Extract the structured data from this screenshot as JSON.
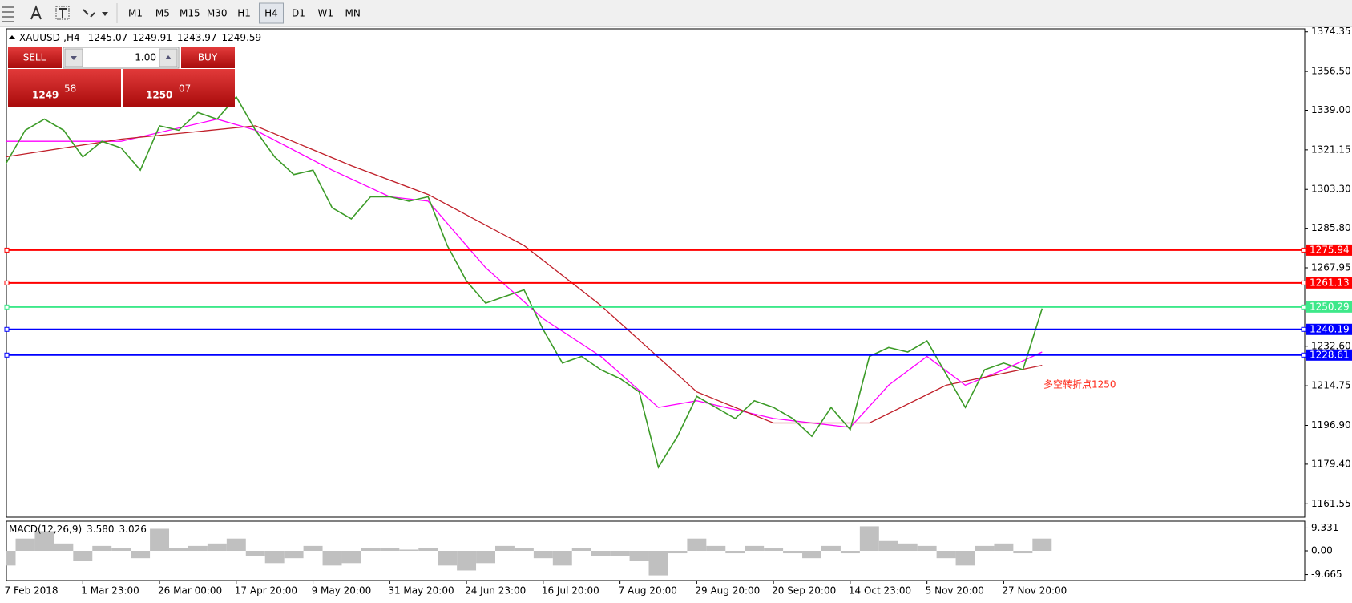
{
  "toolbar": {
    "timeframes": [
      "M1",
      "M5",
      "M15",
      "M30",
      "H1",
      "H4",
      "D1",
      "W1",
      "MN"
    ],
    "active": "H4"
  },
  "trade_panel": {
    "sell": "SELL",
    "volume": "1.00",
    "buy": "BUY",
    "bid": {
      "prefix": "1249",
      "pips": "58"
    },
    "ask": {
      "prefix": "1250",
      "pips": "07"
    }
  },
  "chart_data": [
    {
      "type": "line",
      "title": "XAUUSD-,H4",
      "ohlc": [
        1245.07,
        1249.91,
        1243.97,
        1249.59
      ],
      "categories": [
        "7 Feb 2018",
        null,
        null,
        null,
        "1 Mar 23:00",
        null,
        null,
        null,
        "26 Mar 00:00",
        null,
        null,
        null,
        "17 Apr 20:00",
        null,
        null,
        null,
        "9 May 20:00",
        null,
        null,
        null,
        "31 May 20:00",
        null,
        null,
        null,
        "24 Jun 23:00",
        null,
        null,
        null,
        "16 Jul 20:00",
        null,
        null,
        null,
        "7 Aug 20:00",
        null,
        null,
        null,
        "29 Aug 20:00",
        null,
        null,
        null,
        "20 Sep 20:00",
        null,
        null,
        null,
        "14 Oct 23:00",
        null,
        null,
        null,
        "5 Nov 20:00",
        null,
        null,
        null,
        "27 Nov 20:00",
        null,
        null
      ],
      "series": [
        {
          "color": "#3c9b28",
          "values": [
            1315,
            1330,
            1335,
            1330,
            1318,
            1325,
            1322,
            1312,
            1332,
            1330,
            1338,
            1335,
            1345,
            1330,
            1318,
            1310,
            1312,
            1295,
            1290,
            1300,
            1300,
            1298,
            1300,
            1278,
            1262,
            1252,
            1255,
            1258,
            1240,
            1225,
            1228,
            1222,
            1218,
            1212,
            1178,
            1192,
            1210,
            1205,
            1200,
            1208,
            1205,
            1200,
            1192,
            1205,
            1195,
            1228,
            1232,
            1230,
            1235,
            1220,
            1205,
            1222,
            1225,
            1222,
            1249.59
          ]
        }
      ],
      "overlays": [
        {
          "color": "#ff00ff",
          "x": [
            0,
            6,
            11,
            13,
            17,
            20,
            22,
            25,
            28,
            31,
            34,
            36,
            40,
            44,
            46,
            48,
            50,
            52,
            54
          ],
          "values": [
            1325,
            1325,
            1335,
            1330,
            1312,
            1300,
            1298,
            1268,
            1245,
            1228,
            1205,
            1208,
            1200,
            1196,
            1215,
            1228,
            1215,
            1222,
            1230
          ]
        },
        {
          "color": "#c0202a",
          "x": [
            0,
            6,
            13,
            18,
            22,
            27,
            31,
            36,
            40,
            45,
            49,
            54
          ],
          "values": [
            1318,
            1326,
            1332,
            1314,
            1301,
            1278,
            1251,
            1212,
            1198,
            1198,
            1215,
            1224
          ]
        }
      ],
      "levels": [
        {
          "value": 1275.94,
          "color": "#ff0000"
        },
        {
          "value": 1261.13,
          "color": "#ff0000"
        },
        {
          "value": 1250.29,
          "color": "#3ee88a"
        },
        {
          "value": 1240.19,
          "color": "#0000ff"
        },
        {
          "value": 1228.61,
          "color": "#0000ff"
        }
      ],
      "annotation": "多空转折点1250",
      "ylim": [
        1155.5,
        1375.7
      ],
      "yticks": [
        {
          "value": 1374.35,
          "label": "1374.35"
        },
        {
          "value": 1356.5,
          "label": "1356.50"
        },
        {
          "value": 1339,
          "label": "1339.00"
        },
        {
          "value": 1321.15,
          "label": "1321.15"
        },
        {
          "value": 1303.3,
          "label": "1303.30"
        },
        {
          "value": 1285.8,
          "label": "1285.80"
        },
        {
          "value": 1267.95,
          "label": "1267.95"
        },
        {
          "value": 1232.6,
          "label": "1232.60"
        },
        {
          "value": 1214.75,
          "label": "1214.75"
        },
        {
          "value": 1196.9,
          "label": "1196.90"
        },
        {
          "value": 1179.4,
          "label": "1179.40"
        },
        {
          "value": 1161.55,
          "label": "1161.55"
        }
      ],
      "grid": false
    },
    {
      "type": "bar",
      "title": "MACD(12,26,9)",
      "readout": [
        {
          "value": 3.58,
          "label": "3.580"
        },
        {
          "value": 3.026,
          "label": "3.026"
        }
      ],
      "values": [
        -6,
        5,
        8,
        3,
        -4,
        2,
        1,
        -3,
        9,
        1,
        2,
        3,
        5,
        -2,
        -5,
        -3,
        2,
        -6,
        -5,
        1,
        1,
        0.5,
        1,
        -6,
        -8,
        -5,
        2,
        1,
        -3,
        -6,
        1,
        -2,
        -2,
        -4,
        -10,
        -1,
        5,
        2,
        -1,
        2,
        1,
        -1,
        -3,
        2,
        -1,
        10,
        4,
        3,
        2,
        -3,
        -6,
        2,
        3,
        -1,
        5
      ],
      "color": "#c0c0c0",
      "ylim": [
        -12.1,
        12.1
      ],
      "yticks": [
        9.331,
        {
          "value": 0,
          "label": "0.00"
        },
        -9.665
      ],
      "grid": false
    }
  ]
}
